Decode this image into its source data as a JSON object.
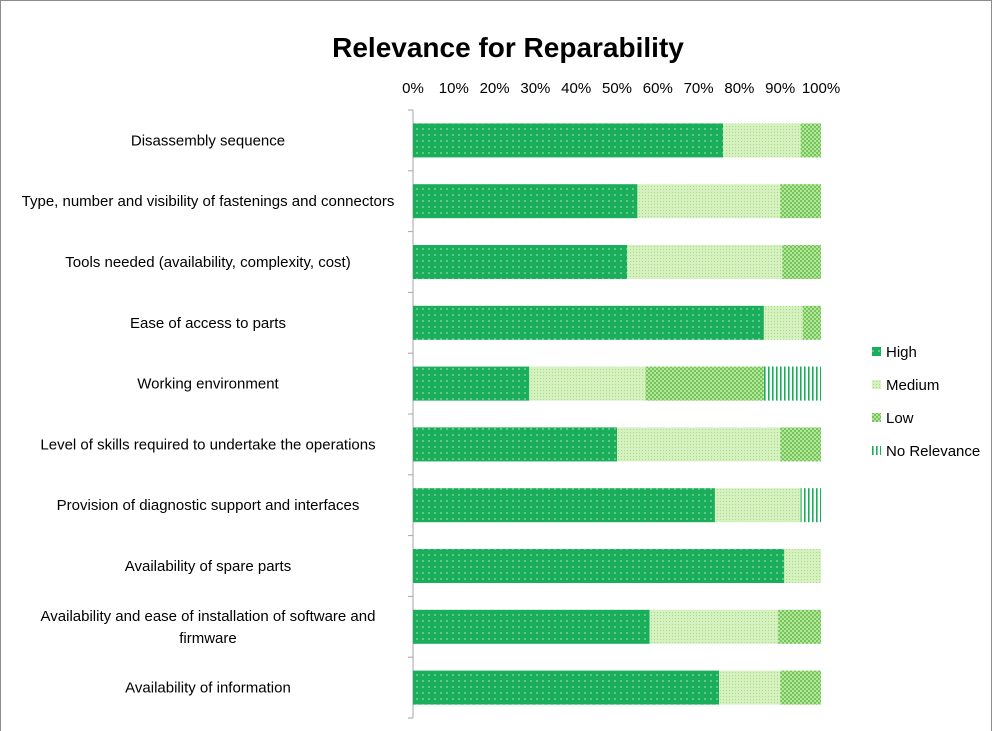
{
  "chart_data": {
    "type": "bar",
    "orientation": "horizontal",
    "stacked": "percent",
    "title": "Relevance for Reparability",
    "x_ticks": [
      "0%",
      "10%",
      "20%",
      "30%",
      "40%",
      "50%",
      "60%",
      "70%",
      "80%",
      "90%",
      "100%"
    ],
    "xlim": [
      0,
      100
    ],
    "x_axis_position": "top",
    "grid": false,
    "legend_position": "right",
    "categories": [
      "Disassembly sequence",
      "Type, number and visibility of fastenings and connectors",
      "Tools needed (availability, complexity, cost)",
      "Ease of access to parts",
      "Working environment",
      "Level of skills required to undertake the operations",
      "Provision of diagnostic support and interfaces",
      "Availability of spare parts",
      "Availability and ease of installation of software and firmware",
      "Availability of information"
    ],
    "series": [
      {
        "name": "High",
        "color": "#1aad5a",
        "pattern": "dots",
        "values": [
          76,
          55,
          52.5,
          86,
          28.5,
          50,
          74,
          91,
          58,
          75
        ]
      },
      {
        "name": "Medium",
        "color": "#c4eaa6",
        "pattern": "fine-dots",
        "values": [
          19,
          35,
          38,
          9.5,
          28.5,
          40,
          21,
          9,
          31.5,
          15
        ]
      },
      {
        "name": "Low",
        "color": "#8ed46e",
        "pattern": "checker",
        "values": [
          5,
          10,
          9.5,
          4.5,
          29,
          10,
          0,
          0,
          10.5,
          10
        ]
      },
      {
        "name": "No Relevance",
        "color": "#1aad5a",
        "pattern": "vertical-lines",
        "values": [
          0,
          0,
          0,
          0,
          14,
          0,
          5,
          0,
          0,
          0
        ]
      }
    ]
  }
}
